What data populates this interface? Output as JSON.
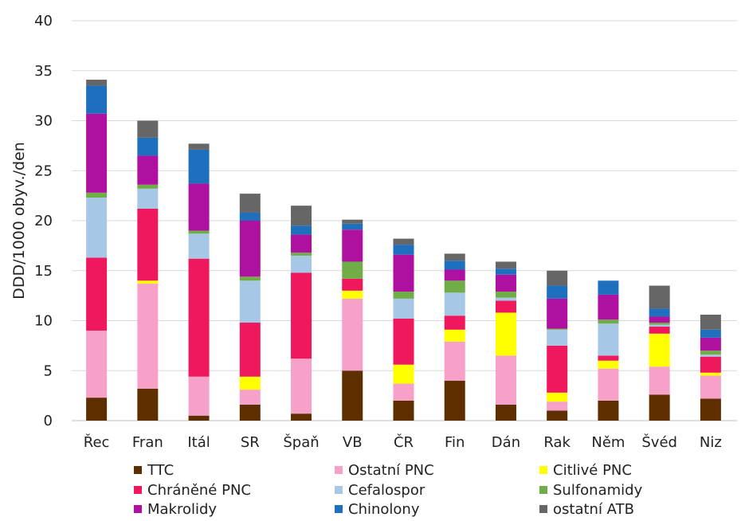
{
  "chart_data": {
    "type": "bar",
    "stacked": true,
    "title": "",
    "xlabel": "",
    "ylabel": "DDD/1000 obyv./den",
    "ylim": [
      0,
      40
    ],
    "yticks": [
      0,
      5,
      10,
      15,
      20,
      25,
      30,
      35,
      40
    ],
    "grid": true,
    "legend_position": "bottom",
    "categories": [
      "Řec",
      "Fran",
      "Itál",
      "SR",
      "Špaň",
      "VB",
      "ČR",
      "Fin",
      "Dán",
      "Rak",
      "Něm",
      "Švéd",
      "Niz"
    ],
    "series": [
      {
        "name": "TTC",
        "color": "#5c2e00",
        "values": [
          2.3,
          3.2,
          0.5,
          1.6,
          0.7,
          5.0,
          2.0,
          4.0,
          1.6,
          1.0,
          2.0,
          2.6,
          2.2
        ]
      },
      {
        "name": "Ostatní PNC",
        "color": "#f7a1c9",
        "values": [
          6.7,
          10.5,
          3.9,
          1.5,
          5.5,
          7.2,
          1.7,
          3.9,
          4.9,
          0.9,
          3.2,
          2.8,
          2.3
        ]
      },
      {
        "name": "Citlivé PNC",
        "color": "#ffff00",
        "values": [
          0.0,
          0.3,
          0.0,
          1.3,
          0.0,
          0.8,
          1.9,
          1.2,
          4.3,
          0.9,
          0.8,
          3.3,
          0.3
        ]
      },
      {
        "name": "Chráněné PNC",
        "color": "#f0185c",
        "values": [
          7.3,
          7.2,
          11.8,
          5.4,
          8.6,
          1.2,
          4.6,
          1.4,
          1.2,
          4.7,
          0.5,
          0.7,
          1.6
        ]
      },
      {
        "name": "Cefalospor",
        "color": "#a7c7e7",
        "values": [
          6.0,
          2.0,
          2.5,
          4.2,
          1.7,
          0.0,
          2.0,
          2.3,
          0.3,
          1.6,
          3.2,
          0.2,
          0.2
        ]
      },
      {
        "name": "Sulfonamidy",
        "color": "#70ad47",
        "values": [
          0.5,
          0.4,
          0.3,
          0.4,
          0.3,
          1.7,
          0.7,
          1.2,
          0.6,
          0.1,
          0.4,
          0.2,
          0.4
        ]
      },
      {
        "name": "Makrolidy",
        "color": "#b0109f",
        "values": [
          7.9,
          2.9,
          4.7,
          5.6,
          1.8,
          3.2,
          3.7,
          1.1,
          1.7,
          3.0,
          2.5,
          0.6,
          1.3
        ]
      },
      {
        "name": "Chinolony",
        "color": "#1f6fbf",
        "values": [
          2.8,
          1.8,
          3.4,
          0.8,
          0.9,
          0.6,
          1.0,
          0.9,
          0.6,
          1.3,
          1.4,
          0.8,
          0.8
        ]
      },
      {
        "name": "ostatní ATB",
        "color": "#666666",
        "values": [
          0.6,
          1.7,
          0.6,
          1.9,
          2.0,
          0.4,
          0.6,
          0.7,
          0.7,
          1.5,
          0.0,
          2.3,
          1.5
        ]
      }
    ]
  }
}
